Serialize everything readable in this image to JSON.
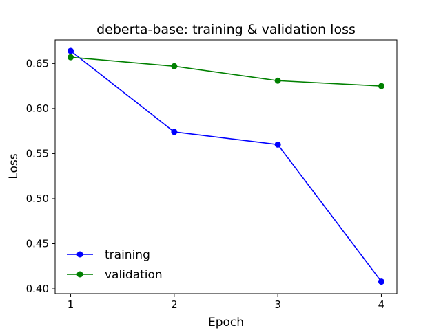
{
  "chart_data": {
    "type": "line",
    "title": "deberta-base: training & validation loss",
    "xlabel": "Epoch",
    "ylabel": "Loss",
    "x": [
      1,
      2,
      3,
      4
    ],
    "xticks": [
      "1",
      "2",
      "3",
      "4"
    ],
    "yticks": [
      "0.40",
      "0.45",
      "0.50",
      "0.55",
      "0.60",
      "0.65"
    ],
    "xlim": [
      0.85,
      4.15
    ],
    "ylim": [
      0.3947,
      0.6762
    ],
    "grid": false,
    "legend_position": "lower-left",
    "series": [
      {
        "name": "training",
        "color": "#0000ff",
        "values": [
          0.664,
          0.574,
          0.56,
          0.408
        ]
      },
      {
        "name": "validation",
        "color": "#008000",
        "values": [
          0.657,
          0.647,
          0.631,
          0.625
        ]
      }
    ]
  }
}
